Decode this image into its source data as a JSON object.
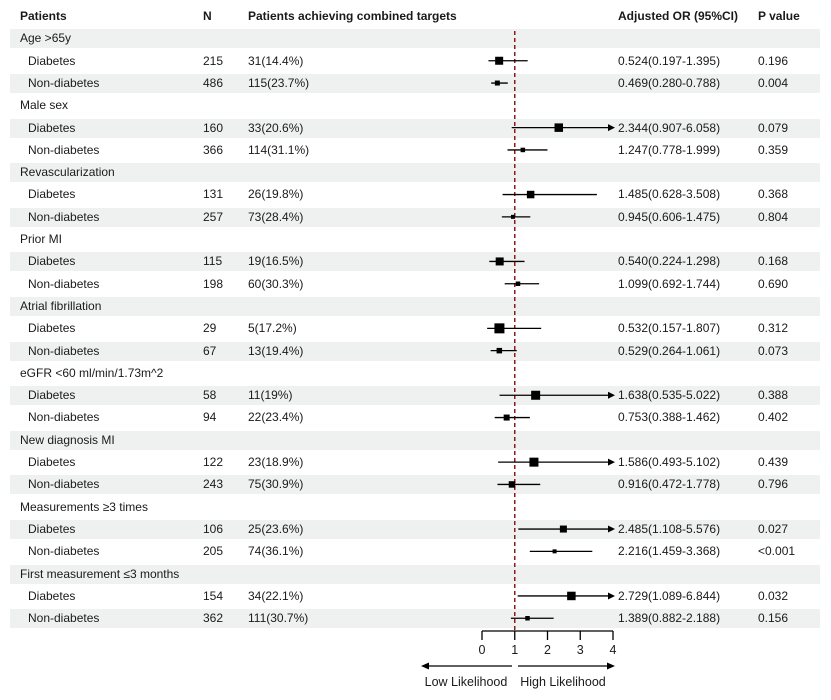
{
  "figure": {
    "columns": {
      "patients": "Patients",
      "n": "N",
      "achieving": "Patients achieving combined targets",
      "or": "Adjusted OR (95%CI)",
      "p": "P value"
    },
    "colors": {
      "stripe": "#eff1f0",
      "marker": "#000000",
      "ci_line": "#000000",
      "reference_line": "#8b1a1a",
      "axis": "#000000",
      "text": "#1a1a1a"
    }
  },
  "chart_data": {
    "type": "forest",
    "title": "",
    "x_axis": {
      "ticks": [
        0,
        1,
        2,
        3,
        4
      ],
      "min": 0,
      "max": 4,
      "reference_line": 1,
      "low_label": "Low Likelihood",
      "high_label": "High Likelihood"
    },
    "groups": [
      {
        "label": "Age >65y",
        "rows": [
          {
            "label": "Diabetes",
            "n": "215",
            "achieving": "31(14.4%)",
            "or": 0.524,
            "lo": 0.197,
            "hi": 1.395,
            "or_text": "0.524(0.197-1.395)",
            "p": "0.196",
            "weight": 8
          },
          {
            "label": "Non-diabetes",
            "n": "486",
            "achieving": "115(23.7%)",
            "or": 0.469,
            "lo": 0.28,
            "hi": 0.788,
            "or_text": "0.469(0.280-0.788)",
            "p": "0.004",
            "weight": 5
          }
        ]
      },
      {
        "label": "Male sex",
        "rows": [
          {
            "label": "Diabetes",
            "n": "160",
            "achieving": "33(20.6%)",
            "or": 2.344,
            "lo": 0.907,
            "hi": 6.058,
            "or_text": "2.344(0.907-6.058)",
            "p": "0.079",
            "weight": 8.5
          },
          {
            "label": "Non-diabetes",
            "n": "366",
            "achieving": "114(31.1%)",
            "or": 1.247,
            "lo": 0.778,
            "hi": 1.999,
            "or_text": "1.247(0.778-1.999)",
            "p": "0.359",
            "weight": 4.5
          }
        ]
      },
      {
        "label": "Revascularization",
        "rows": [
          {
            "label": "Diabetes",
            "n": "131",
            "achieving": "26(19.8%)",
            "or": 1.485,
            "lo": 0.628,
            "hi": 3.508,
            "or_text": "1.485(0.628-3.508)",
            "p": "0.368",
            "weight": 7.5
          },
          {
            "label": "Non-diabetes",
            "n": "257",
            "achieving": "73(28.4%)",
            "or": 0.945,
            "lo": 0.606,
            "hi": 1.475,
            "or_text": "0.945(0.606-1.475)",
            "p": "0.804",
            "weight": 4
          }
        ]
      },
      {
        "label": "Prior MI",
        "rows": [
          {
            "label": "Diabetes",
            "n": "115",
            "achieving": "19(16.5%)",
            "or": 0.54,
            "lo": 0.224,
            "hi": 1.298,
            "or_text": "0.540(0.224-1.298)",
            "p": "0.168",
            "weight": 8
          },
          {
            "label": "Non-diabetes",
            "n": "198",
            "achieving": "60(30.3%)",
            "or": 1.099,
            "lo": 0.692,
            "hi": 1.744,
            "or_text": "1.099(0.692-1.744)",
            "p": "0.690",
            "weight": 4.5
          }
        ]
      },
      {
        "label": "Atrial fibrillation",
        "rows": [
          {
            "label": "Diabetes",
            "n": "29",
            "achieving": "5(17.2%)",
            "or": 0.532,
            "lo": 0.157,
            "hi": 1.807,
            "or_text": "0.532(0.157-1.807)",
            "p": "0.312",
            "weight": 10
          },
          {
            "label": "Non-diabetes",
            "n": "67",
            "achieving": "13(19.4%)",
            "or": 0.529,
            "lo": 0.264,
            "hi": 1.061,
            "or_text": "0.529(0.264-1.061)",
            "p": "0.073",
            "weight": 5.5
          }
        ]
      },
      {
        "label": "eGFR <60 ml/min/1.73m^2",
        "rows": [
          {
            "label": "Diabetes",
            "n": "58",
            "achieving": "11(19%)",
            "or": 1.638,
            "lo": 0.535,
            "hi": 5.022,
            "or_text": "1.638(0.535-5.022)",
            "p": "0.388",
            "weight": 9
          },
          {
            "label": "Non-diabetes",
            "n": "94",
            "achieving": "22(23.4%)",
            "or": 0.753,
            "lo": 0.388,
            "hi": 1.462,
            "or_text": "0.753(0.388-1.462)",
            "p": "0.402",
            "weight": 6
          }
        ]
      },
      {
        "label": "New diagnosis MI",
        "rows": [
          {
            "label": "Diabetes",
            "n": "122",
            "achieving": "23(18.9%)",
            "or": 1.586,
            "lo": 0.493,
            "hi": 5.102,
            "or_text": "1.586(0.493-5.102)",
            "p": "0.439",
            "weight": 9
          },
          {
            "label": "Non-diabetes",
            "n": "243",
            "achieving": "75(30.9%)",
            "or": 0.916,
            "lo": 0.472,
            "hi": 1.778,
            "or_text": "0.916(0.472-1.778)",
            "p": "0.796",
            "weight": 6.5
          }
        ]
      },
      {
        "label": "Measurements ≥3 times",
        "rows": [
          {
            "label": "Diabetes",
            "n": "106",
            "achieving": "25(23.6%)",
            "or": 2.485,
            "lo": 1.108,
            "hi": 5.576,
            "or_text": "2.485(1.108-5.576)",
            "p": "0.027",
            "weight": 7
          },
          {
            "label": "Non-diabetes",
            "n": "205",
            "achieving": "74(36.1%)",
            "or": 2.216,
            "lo": 1.459,
            "hi": 3.368,
            "or_text": "2.216(1.459-3.368)",
            "p": "<0.001",
            "weight": 4
          }
        ]
      },
      {
        "label": "First measurement ≤3 months",
        "rows": [
          {
            "label": "Diabetes",
            "n": "154",
            "achieving": "34(22.1%)",
            "or": 2.729,
            "lo": 1.089,
            "hi": 6.844,
            "or_text": "2.729(1.089-6.844)",
            "p": "0.032",
            "weight": 8.5
          },
          {
            "label": "Non-diabetes",
            "n": "362",
            "achieving": "111(30.7%)",
            "or": 1.389,
            "lo": 0.882,
            "hi": 2.188,
            "or_text": "1.389(0.882-2.188)",
            "p": "0.156",
            "weight": 4.5
          }
        ]
      }
    ]
  }
}
